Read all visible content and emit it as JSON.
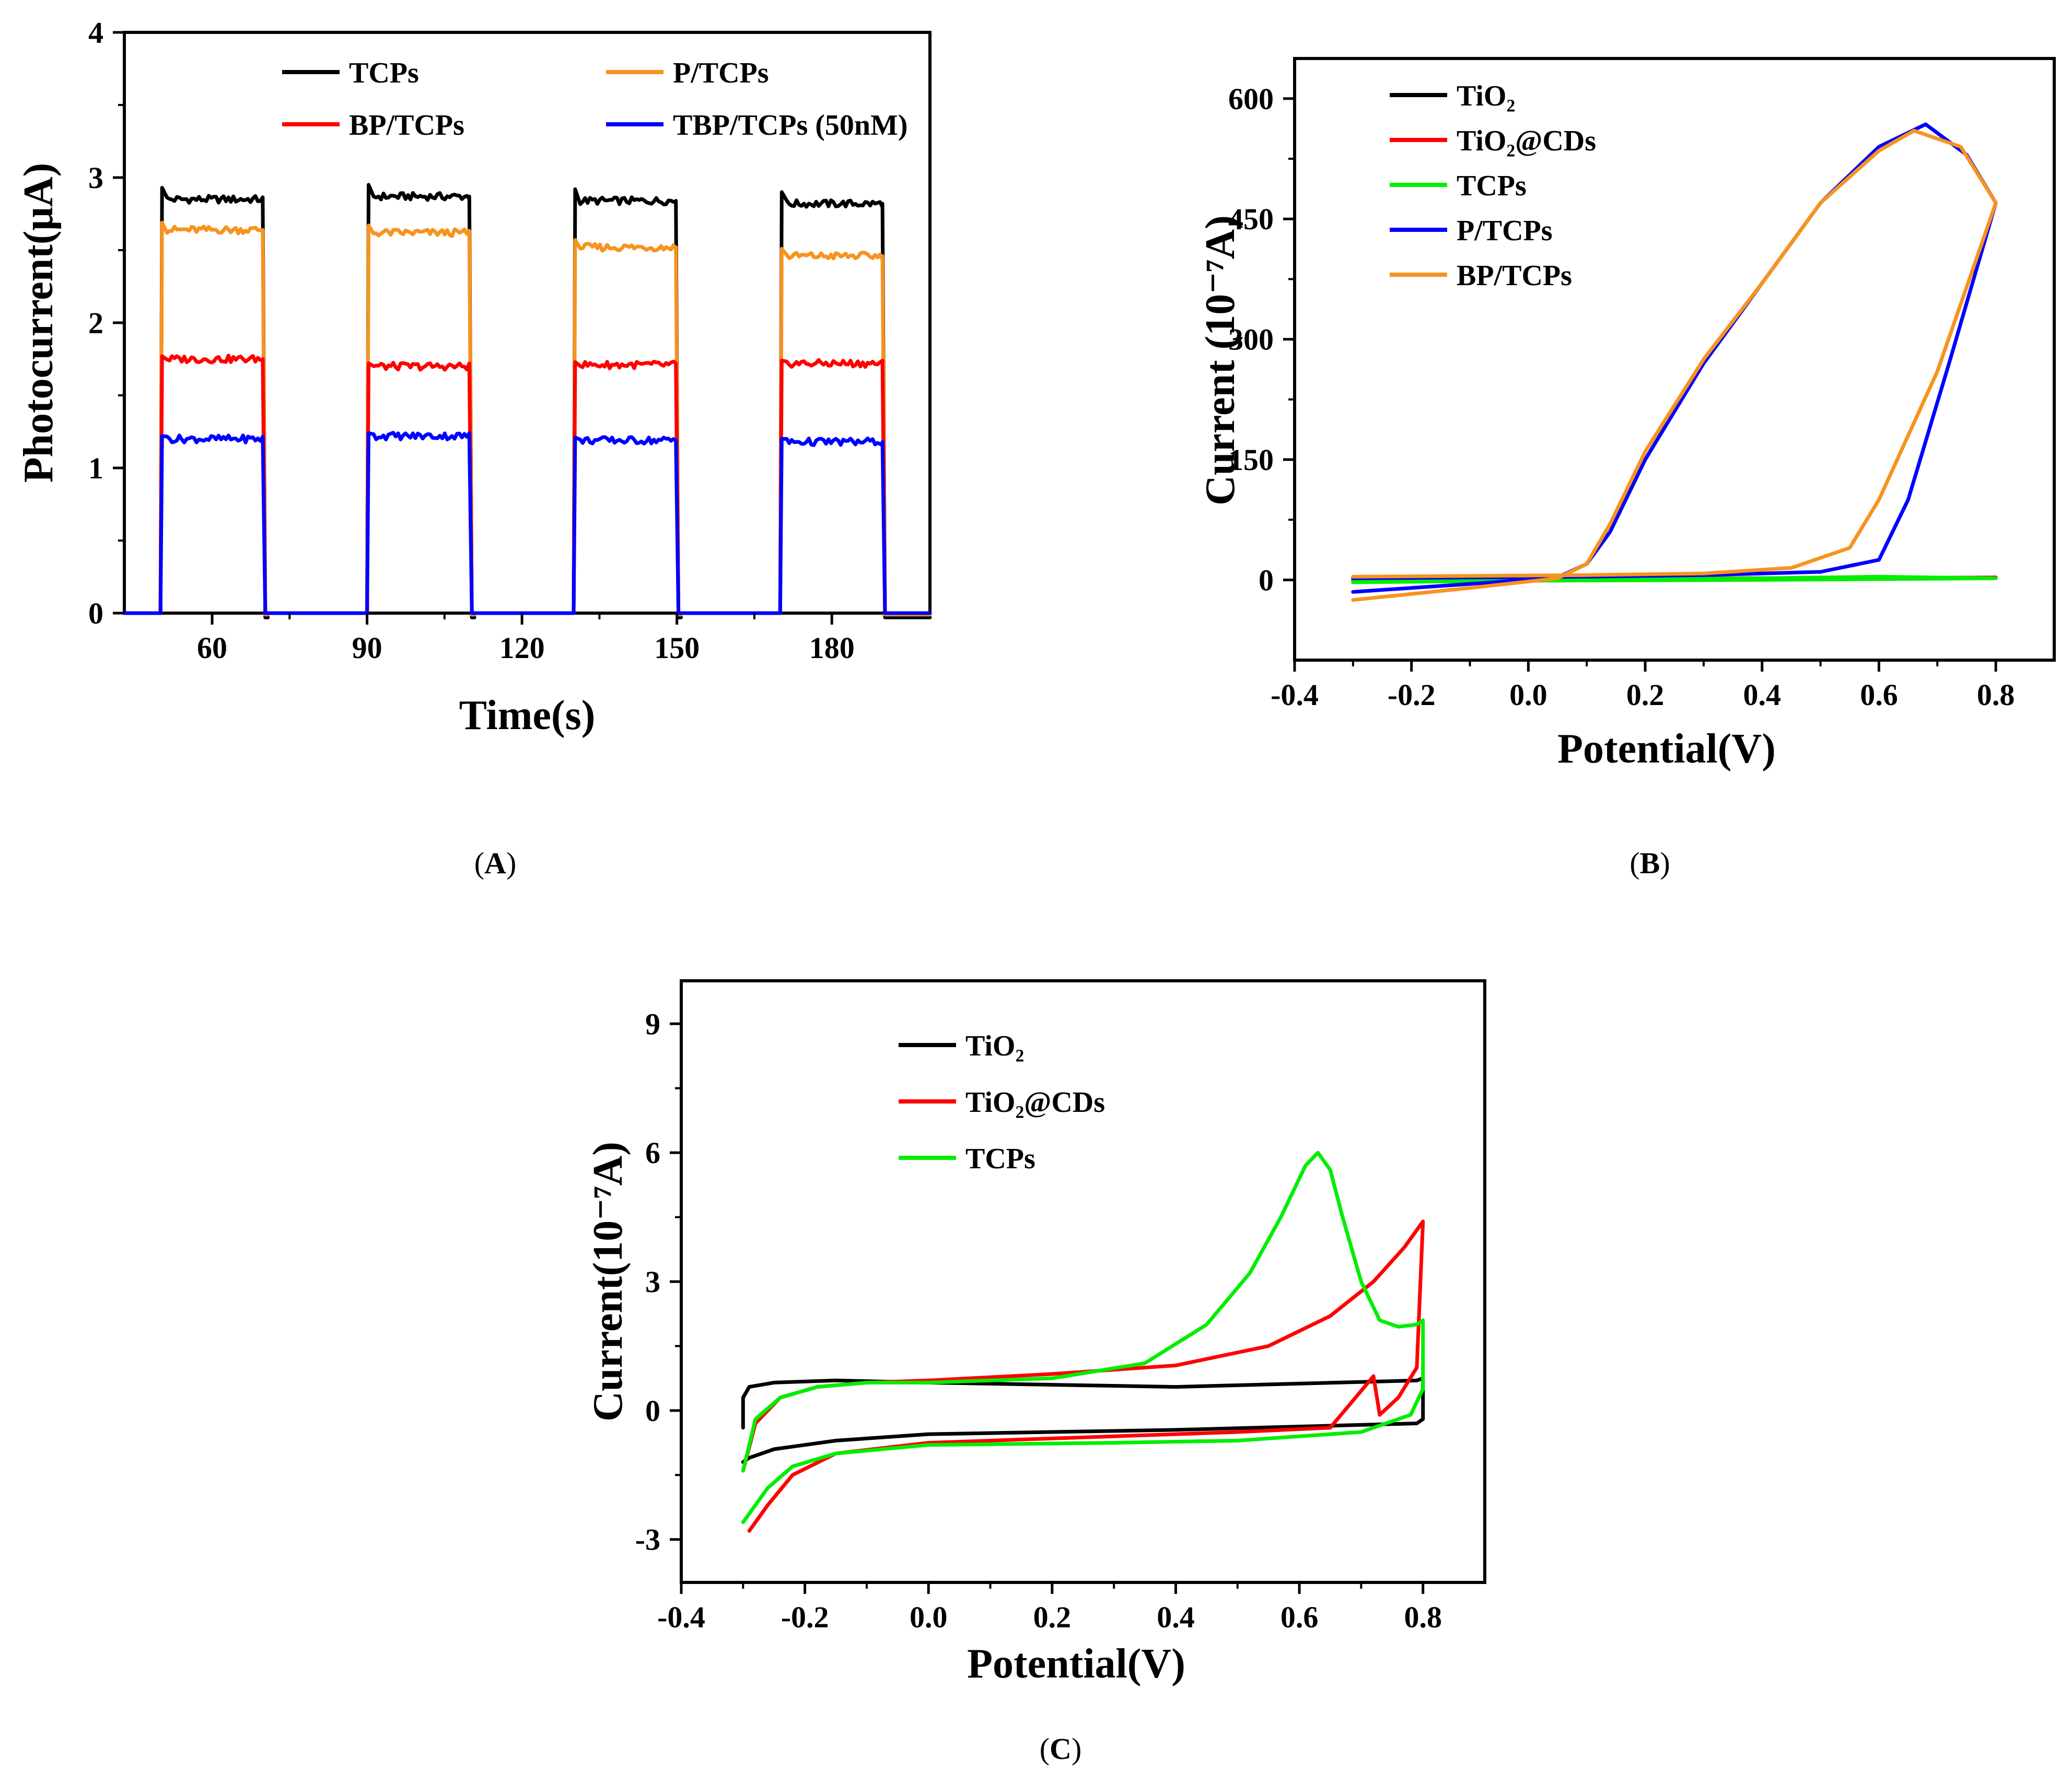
{
  "figure_labels": {
    "a": "A",
    "b": "B",
    "c": "C"
  },
  "chart_data": [
    {
      "id": "A",
      "type": "line",
      "title": "",
      "xlabel": "Time(s)",
      "ylabel": "Photocurrent(μA)",
      "xlim": [
        43,
        199
      ],
      "ylim": [
        0,
        4
      ],
      "xticks": [
        60,
        90,
        120,
        150,
        180
      ],
      "yticks": [
        0,
        1,
        2,
        3,
        4
      ],
      "legend_position": "top",
      "on_intervals": [
        [
          50,
          70
        ],
        [
          90,
          110
        ],
        [
          130,
          150
        ],
        [
          170,
          190
        ]
      ],
      "series": [
        {
          "name": "TCPs",
          "color": "#000000",
          "on_levels": [
            2.85,
            2.87,
            2.84,
            2.82
          ],
          "spike": 0.08,
          "off_level": -0.03
        },
        {
          "name": "P/TCPs",
          "color": "#f7931e",
          "on_levels": [
            2.64,
            2.62,
            2.52,
            2.46
          ],
          "spike": 0.05,
          "off_level": -0.01
        },
        {
          "name": "BP/TCPs",
          "color": "#ff0000",
          "on_levels": [
            1.75,
            1.7,
            1.71,
            1.72
          ],
          "spike": 0.02,
          "off_level": 0.0
        },
        {
          "name": "TBP/TCPs (50nM)",
          "color": "#0000ff",
          "on_levels": [
            1.2,
            1.22,
            1.19,
            1.18
          ],
          "spike": 0.02,
          "off_level": 0.0
        }
      ]
    },
    {
      "id": "B",
      "type": "line",
      "title": "",
      "xlabel": "Potential(V)",
      "ylabel": "Current (10⁻⁷A)",
      "xlim": [
        -0.4,
        0.9
      ],
      "ylim": [
        -100,
        650
      ],
      "xticks": [
        -0.4,
        -0.2,
        0.0,
        0.2,
        0.4,
        0.6,
        0.8
      ],
      "yticks": [
        0,
        150,
        300,
        450,
        600
      ],
      "legend_position": "top-left",
      "series": [
        {
          "name": "TiO₂",
          "color": "#000000",
          "x": [
            -0.3,
            0.0,
            0.4,
            0.8,
            0.4,
            0.0,
            -0.3
          ],
          "y": [
            1,
            2,
            2,
            3,
            1,
            0,
            -1
          ]
        },
        {
          "name": "TiO₂@CDs",
          "color": "#ff0000",
          "x": [
            -0.3,
            0.0,
            0.4,
            0.8,
            0.4,
            0.0,
            -0.3
          ],
          "y": [
            0,
            1,
            2,
            3,
            1,
            0,
            -1
          ]
        },
        {
          "name": "TCPs",
          "color": "#00ee00",
          "x": [
            -0.3,
            0.0,
            0.4,
            0.6,
            0.8,
            0.4,
            0.0,
            -0.3
          ],
          "y": [
            -2,
            0,
            2,
            4,
            2,
            0,
            -1,
            -3
          ]
        },
        {
          "name": "P/TCPs",
          "color": "#0000ff",
          "x": [
            -0.3,
            -0.1,
            0.05,
            0.1,
            0.14,
            0.2,
            0.3,
            0.4,
            0.5,
            0.6,
            0.68,
            0.75,
            0.8,
            0.72,
            0.65,
            0.6,
            0.5,
            0.3,
            0.1,
            -0.1,
            -0.3
          ],
          "y": [
            -15,
            -5,
            3,
            20,
            60,
            150,
            270,
            370,
            470,
            540,
            568,
            530,
            470,
            270,
            100,
            25,
            10,
            6,
            4,
            3,
            2
          ]
        },
        {
          "name": "BP/TCPs",
          "color": "#f7931e",
          "x": [
            -0.3,
            -0.1,
            0.05,
            0.1,
            0.14,
            0.2,
            0.3,
            0.4,
            0.5,
            0.6,
            0.66,
            0.74,
            0.8,
            0.7,
            0.6,
            0.55,
            0.45,
            0.3,
            0.1,
            -0.1,
            -0.3
          ],
          "y": [
            -25,
            -10,
            2,
            20,
            70,
            160,
            275,
            370,
            470,
            535,
            560,
            540,
            470,
            260,
            100,
            40,
            15,
            8,
            6,
            5,
            4
          ]
        }
      ]
    },
    {
      "id": "C",
      "type": "line",
      "title": "",
      "xlabel": "Potential(V)",
      "ylabel": "Current(10⁻⁷A)",
      "xlim": [
        -0.4,
        0.9
      ],
      "ylim": [
        -4,
        10
      ],
      "xticks": [
        -0.4,
        -0.2,
        0.0,
        0.2,
        0.4,
        0.6,
        0.8
      ],
      "yticks": [
        -3,
        0,
        3,
        6,
        9
      ],
      "legend_position": "top-left",
      "series": [
        {
          "name": "TiO₂",
          "color": "#000000",
          "x": [
            -0.3,
            -0.3,
            -0.29,
            -0.25,
            -0.15,
            0.0,
            0.4,
            0.79,
            0.8,
            0.8,
            0.79,
            0.4,
            0.0,
            -0.15,
            -0.25,
            -0.29,
            -0.3
          ],
          "y": [
            -0.4,
            0.3,
            0.55,
            0.65,
            0.7,
            0.65,
            0.55,
            0.7,
            0.75,
            -0.2,
            -0.3,
            -0.45,
            -0.55,
            -0.7,
            -0.9,
            -1.1,
            -1.2
          ]
        },
        {
          "name": "TiO₂@CDs",
          "color": "#ff0000",
          "x": [
            -0.3,
            -0.28,
            -0.24,
            -0.18,
            -0.1,
            0.0,
            0.2,
            0.4,
            0.55,
            0.65,
            0.72,
            0.77,
            0.8,
            0.79,
            0.76,
            0.73,
            0.72,
            0.65,
            0.5,
            0.3,
            0.0,
            -0.15,
            -0.22,
            -0.26,
            -0.29
          ],
          "y": [
            -1.4,
            -0.3,
            0.3,
            0.55,
            0.65,
            0.7,
            0.85,
            1.05,
            1.5,
            2.2,
            3.0,
            3.8,
            4.4,
            1.0,
            0.3,
            -0.1,
            0.8,
            -0.4,
            -0.5,
            -0.6,
            -0.75,
            -1.0,
            -1.5,
            -2.2,
            -2.8
          ]
        },
        {
          "name": "TCPs",
          "color": "#00ee00",
          "x": [
            -0.3,
            -0.28,
            -0.24,
            -0.18,
            -0.1,
            0.0,
            0.2,
            0.35,
            0.45,
            0.52,
            0.57,
            0.61,
            0.63,
            0.65,
            0.67,
            0.7,
            0.73,
            0.76,
            0.79,
            0.8,
            0.8,
            0.78,
            0.7,
            0.5,
            0.3,
            0.0,
            -0.15,
            -0.22,
            -0.26,
            -0.3
          ],
          "y": [
            -1.4,
            -0.2,
            0.3,
            0.55,
            0.65,
            0.65,
            0.75,
            1.1,
            2.0,
            3.2,
            4.5,
            5.7,
            6.0,
            5.6,
            4.5,
            3.0,
            2.1,
            1.95,
            2.0,
            2.1,
            0.5,
            -0.1,
            -0.5,
            -0.7,
            -0.75,
            -0.8,
            -1.0,
            -1.3,
            -1.8,
            -2.6
          ]
        }
      ]
    }
  ]
}
